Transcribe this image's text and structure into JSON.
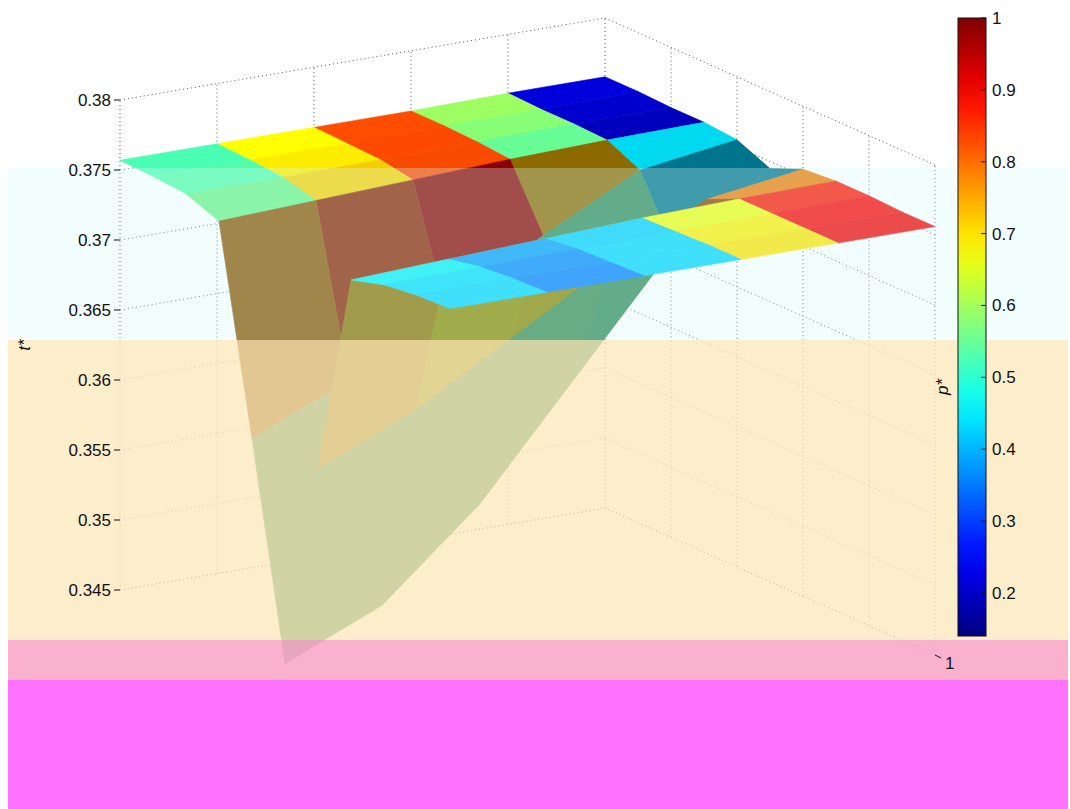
{
  "chart_data": {
    "type": "surface",
    "zlabel": "t*",
    "x": [
      0,
      0.1,
      0.2,
      0.3,
      0.4,
      0.5,
      0.6,
      0.7,
      0.8,
      0.9,
      1
    ],
    "y": [
      0,
      0.2,
      0.4,
      0.6,
      0.8,
      1
    ],
    "xlim": [
      0,
      1
    ],
    "ylim": [
      0,
      1
    ],
    "yticks": [
      1
    ],
    "zlim": [
      0.345,
      0.38
    ],
    "zticks": [
      0.345,
      0.35,
      0.355,
      0.36,
      0.365,
      0.37,
      0.375,
      0.38
    ],
    "grid": true,
    "z": [
      [
        0.3757,
        0.3756,
        0.3754,
        0.3745,
        0.36,
        0.345,
        0.36,
        0.3745,
        0.3752,
        0.3755,
        0.3756
      ],
      [
        0.3757,
        0.3756,
        0.3754,
        0.3748,
        0.363,
        0.348,
        0.363,
        0.3748,
        0.3753,
        0.3755,
        0.3756
      ],
      [
        0.3757,
        0.3756,
        0.3755,
        0.3751,
        0.367,
        0.354,
        0.367,
        0.3751,
        0.3754,
        0.3755,
        0.3756
      ],
      [
        0.3757,
        0.3757,
        0.3756,
        0.3754,
        0.371,
        0.362,
        0.371,
        0.3754,
        0.3755,
        0.3756,
        0.3756
      ],
      [
        0.3758,
        0.3757,
        0.3757,
        0.3756,
        0.3745,
        0.37,
        0.3745,
        0.3756,
        0.3756,
        0.3756,
        0.3756
      ],
      [
        0.3758,
        0.3758,
        0.3757,
        0.3757,
        0.3755,
        0.3745,
        0.3755,
        0.3757,
        0.3757,
        0.3756,
        0.3756
      ]
    ],
    "c": [
      [
        0.45,
        0.45,
        0.46,
        0.5,
        0.95,
        0.15,
        0.95,
        0.5,
        0.46,
        0.45,
        0.45
      ],
      [
        0.6,
        0.6,
        0.62,
        0.65,
        0.95,
        0.15,
        0.95,
        0.45,
        0.42,
        0.41,
        0.4
      ],
      [
        0.75,
        0.76,
        0.78,
        0.8,
        0.95,
        0.15,
        0.95,
        0.35,
        0.32,
        0.31,
        0.3
      ],
      [
        0.9,
        0.9,
        0.88,
        0.85,
        0.95,
        0.15,
        0.95,
        0.5,
        0.53,
        0.55,
        0.55
      ],
      [
        0.3,
        0.28,
        0.25,
        0.22,
        0.9,
        0.15,
        0.9,
        0.8,
        0.83,
        0.85,
        0.85
      ],
      [
        0.15,
        0.15,
        0.15,
        0.15,
        0.5,
        0.15,
        0.5,
        0.93,
        0.94,
        0.95,
        0.95
      ]
    ],
    "colorbar": {
      "label": "p*",
      "lim": [
        0.14,
        1
      ],
      "ticks": [
        0.2,
        0.3,
        0.4,
        0.5,
        0.6,
        0.7,
        0.8,
        0.9,
        1
      ]
    }
  }
}
